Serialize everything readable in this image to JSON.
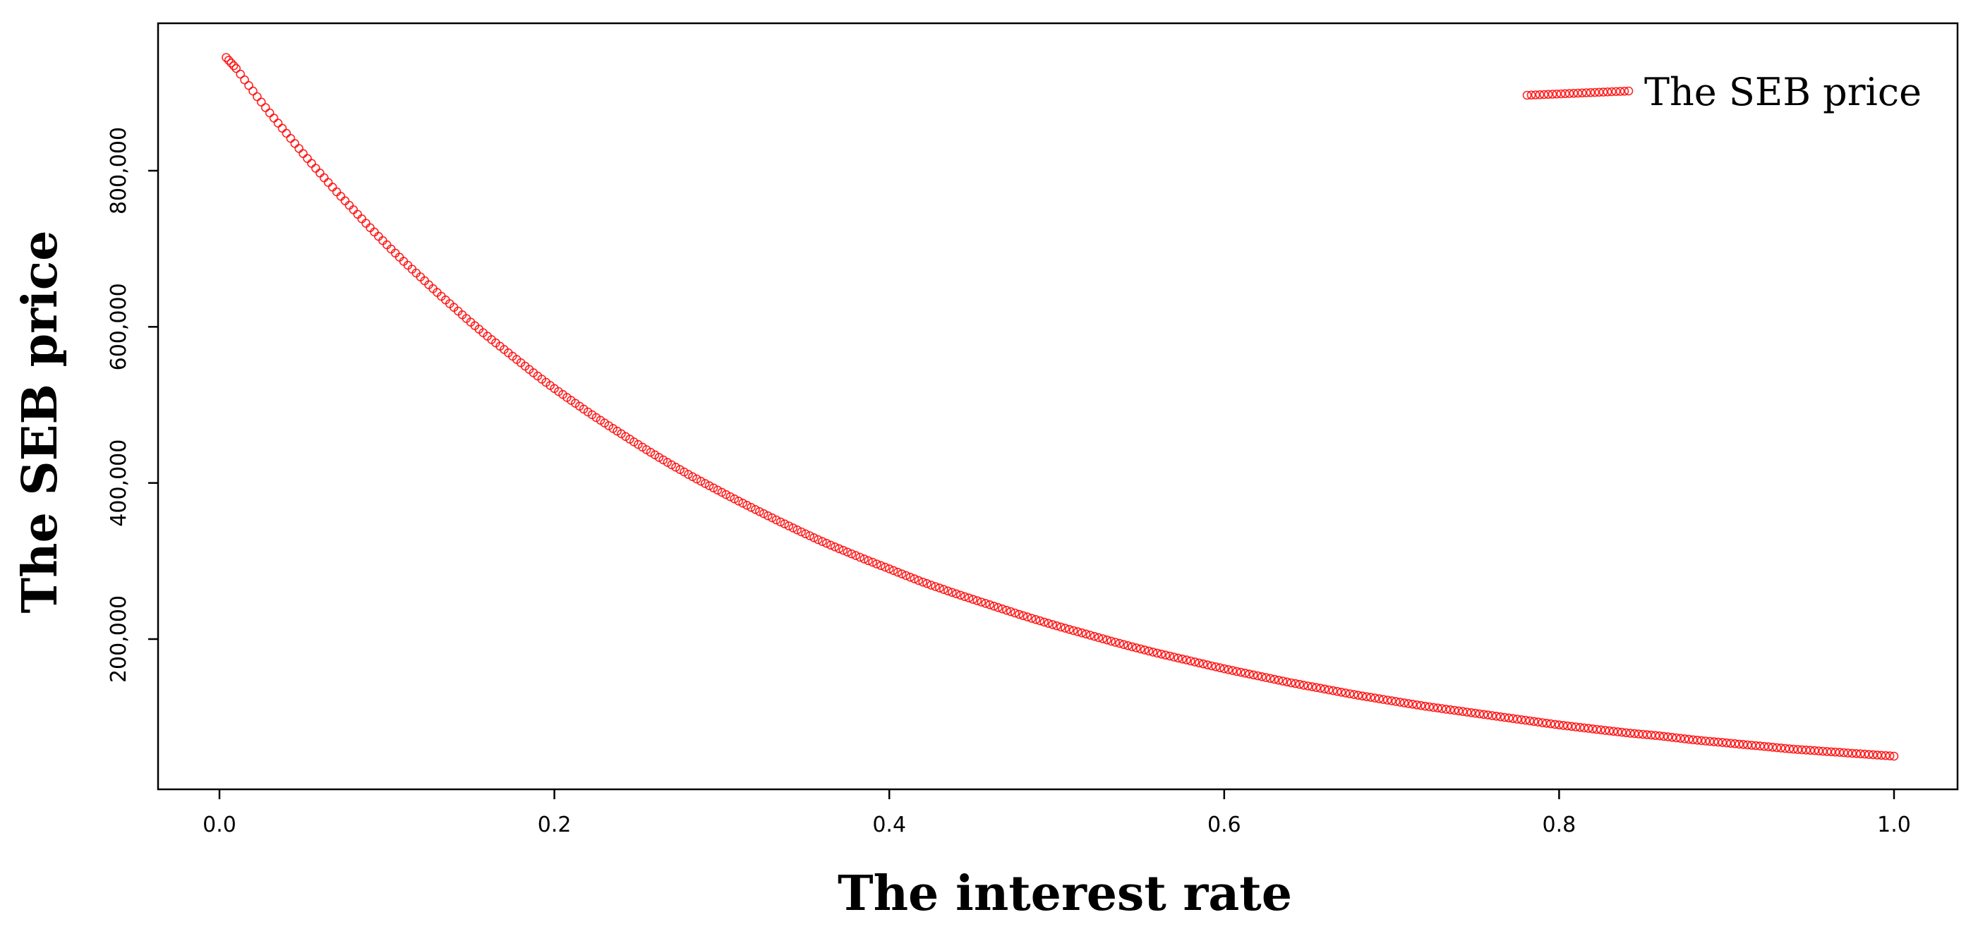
{
  "chart_data": {
    "type": "scatter",
    "title": "",
    "xlabel": "The interest rate",
    "ylabel": "The SEB price",
    "xlim": [
      0.0,
      1.0
    ],
    "ylim": [
      42000,
      950000
    ],
    "x_ticks": [
      0.0,
      0.2,
      0.4,
      0.6,
      0.8,
      1.0
    ],
    "x_tick_labels": [
      "0.0",
      "0.2",
      "0.4",
      "0.6",
      "0.8",
      "1.0"
    ],
    "y_ticks": [
      200000,
      400000,
      600000,
      800000
    ],
    "y_tick_labels": [
      "200,000",
      "400,000",
      "600,000",
      "800,000"
    ],
    "grid": false,
    "legend_position": "top-right",
    "series": [
      {
        "name": "The SEB price",
        "color": "#ff0000",
        "marker": "open-circle",
        "points": [
          [
            0.004,
            945000
          ],
          [
            0.01,
            931000
          ],
          [
            0.02,
            902000
          ],
          [
            0.03,
            874000
          ],
          [
            0.04,
            848000
          ],
          [
            0.05,
            822000
          ],
          [
            0.06,
            797000
          ],
          [
            0.07,
            773000
          ],
          [
            0.08,
            750000
          ],
          [
            0.09,
            727000
          ],
          [
            0.1,
            705000
          ],
          [
            0.11,
            684000
          ],
          [
            0.12,
            664000
          ],
          [
            0.13,
            644000
          ],
          [
            0.14,
            625000
          ],
          [
            0.15,
            606000
          ],
          [
            0.16,
            588000
          ],
          [
            0.17,
            571000
          ],
          [
            0.18,
            554000
          ],
          [
            0.19,
            537000
          ],
          [
            0.2,
            521000
          ],
          [
            0.22,
            491000
          ],
          [
            0.24,
            463000
          ],
          [
            0.26,
            436000
          ],
          [
            0.28,
            411000
          ],
          [
            0.3,
            388000
          ],
          [
            0.32,
            366000
          ],
          [
            0.34,
            345000
          ],
          [
            0.36,
            325000
          ],
          [
            0.38,
            307000
          ],
          [
            0.4,
            290000
          ],
          [
            0.42,
            273000
          ],
          [
            0.44,
            258000
          ],
          [
            0.46,
            244000
          ],
          [
            0.48,
            230000
          ],
          [
            0.5,
            217000
          ],
          [
            0.52,
            205000
          ],
          [
            0.54,
            193000
          ],
          [
            0.56,
            182000
          ],
          [
            0.58,
            172000
          ],
          [
            0.6,
            162000
          ],
          [
            0.62,
            153000
          ],
          [
            0.64,
            144000
          ],
          [
            0.66,
            136000
          ],
          [
            0.68,
            128000
          ],
          [
            0.7,
            121000
          ],
          [
            0.72,
            114000
          ],
          [
            0.74,
            108000
          ],
          [
            0.76,
            102000
          ],
          [
            0.78,
            96000
          ],
          [
            0.8,
            90000
          ],
          [
            0.82,
            85000
          ],
          [
            0.84,
            80000
          ],
          [
            0.86,
            76000
          ],
          [
            0.88,
            71000
          ],
          [
            0.9,
            67000
          ],
          [
            0.92,
            63000
          ],
          [
            0.94,
            59000
          ],
          [
            0.96,
            56000
          ],
          [
            0.98,
            53000
          ],
          [
            1.0,
            50000
          ]
        ]
      }
    ]
  }
}
